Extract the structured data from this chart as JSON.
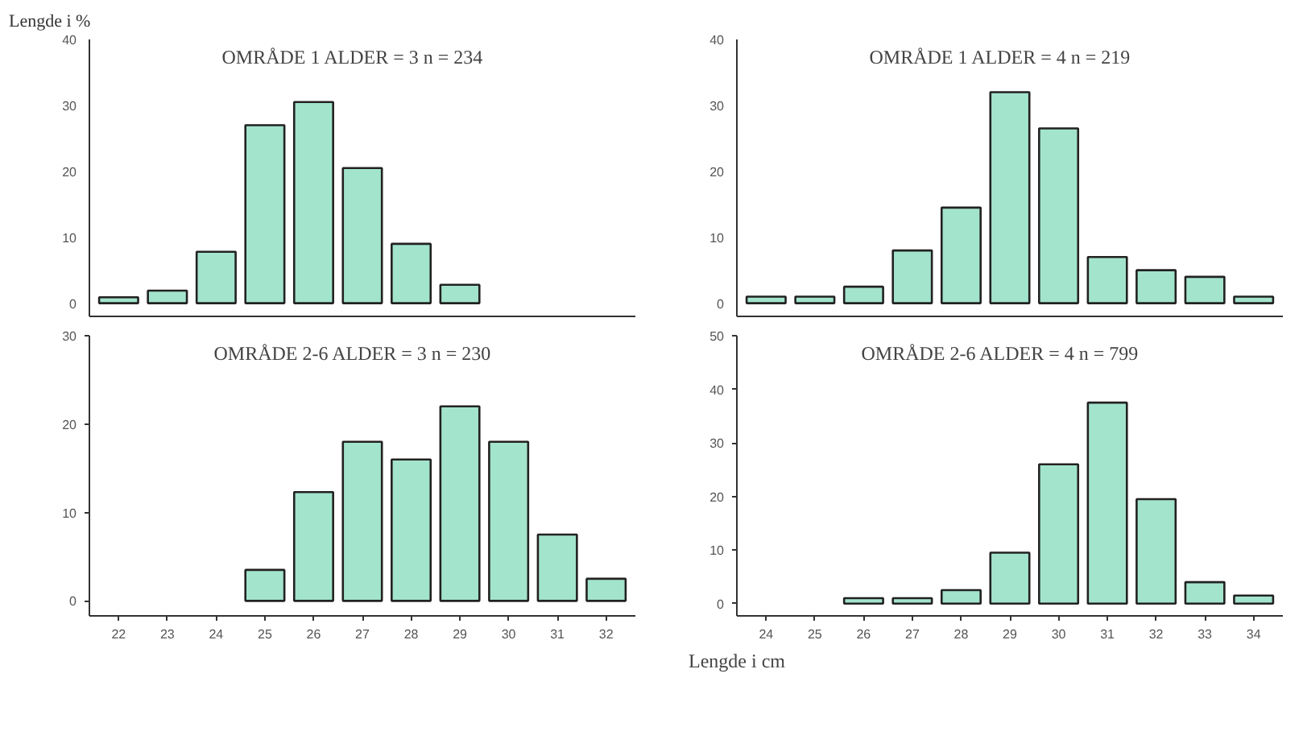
{
  "chart_data": [
    {
      "type": "bar",
      "title": "OMRÅDE 1   ALDER = 3   n = 234",
      "ylabel": "Lengde i %",
      "categories": [
        "22",
        "23",
        "24",
        "25",
        "26",
        "27",
        "28",
        "29",
        "30",
        "31",
        "32"
      ],
      "values": [
        0.9,
        1.9,
        7.8,
        27,
        30.5,
        20.5,
        9,
        2.8,
        null,
        null,
        null
      ],
      "color": "#a3e4cc",
      "ylim": [
        -2,
        40
      ],
      "yticks": [
        0,
        10,
        20,
        30,
        40
      ],
      "tick_labels": "y",
      "grid": false
    },
    {
      "type": "bar",
      "title": "OMRÅDE 1   ALDER = 4   n = 219",
      "categories": [
        "24",
        "25",
        "26",
        "27",
        "28",
        "29",
        "30",
        "31",
        "32",
        "33",
        "34"
      ],
      "values": [
        1,
        1,
        2.5,
        8,
        14.5,
        32,
        26.5,
        7,
        5,
        4,
        1
      ],
      "color": "#a3e4cc",
      "ylim": [
        -2,
        40
      ],
      "yticks": [
        0,
        10,
        20,
        30,
        40
      ],
      "tick_labels": "y",
      "grid": false
    },
    {
      "type": "bar",
      "title": "OMRÅDE 2-6   ALDER = 3   n = 230",
      "categories": [
        "22",
        "23",
        "24",
        "25",
        "26",
        "27",
        "28",
        "29",
        "30",
        "31",
        "32"
      ],
      "values": [
        null,
        null,
        null,
        3.5,
        12.3,
        18,
        16,
        22,
        18,
        7.5,
        2.5
      ],
      "color": "#a3e4cc",
      "ylim": [
        -1.7,
        30
      ],
      "yticks": [
        0,
        10,
        20,
        30
      ],
      "grid": false
    },
    {
      "type": "bar",
      "title": "OMRÅDE 2-6   ALDER = 4   n = 799",
      "xlabel": "Lengde i cm",
      "categories": [
        "24",
        "25",
        "26",
        "27",
        "28",
        "29",
        "30",
        "31",
        "32",
        "33",
        "34"
      ],
      "values": [
        null,
        null,
        1,
        1,
        2.5,
        9.5,
        26,
        37.5,
        19.5,
        4,
        1.5
      ],
      "color": "#a3e4cc",
      "ylim": [
        -2.3,
        50
      ],
      "yticks": [
        0,
        10,
        20,
        30,
        40,
        50
      ],
      "grid": false
    }
  ]
}
